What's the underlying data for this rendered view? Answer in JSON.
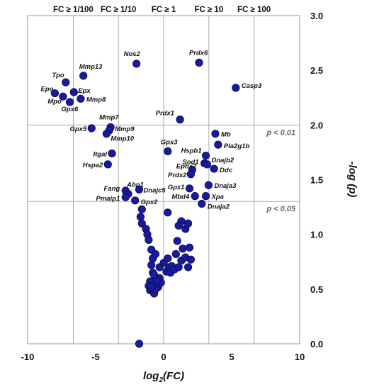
{
  "chart_data": {
    "type": "scatter",
    "xlabel_main": "log",
    "xlabel_sub": "2",
    "xlabel_tail": "(FC)",
    "ylabel": "-log (p)",
    "xlim": [
      -10,
      10
    ],
    "ylim": [
      0,
      3
    ],
    "x_ticks": [
      "-10",
      "-5",
      "0",
      "5",
      "10"
    ],
    "y_ticks": [
      "0.0",
      "0.5",
      "1.0",
      "1.5",
      "2.0",
      "2.5",
      "3.0"
    ],
    "fc_lines": [
      {
        "x": -6.644,
        "label": "FC ≥ 1/100"
      },
      {
        "x": -3.322,
        "label": "FC ≥ 1/10"
      },
      {
        "x": 0,
        "label": "FC ≥ 1"
      },
      {
        "x": 3.322,
        "label": "FC ≥ 10"
      },
      {
        "x": 6.644,
        "label": "FC ≥ 100"
      }
    ],
    "thresholds": [
      {
        "y": 2.0,
        "label": "p < 0.01"
      },
      {
        "y": 1.301,
        "label": "p < 0.05"
      }
    ],
    "points": [
      {
        "x": -8.0,
        "y": 2.29,
        "label": "Epo"
      },
      {
        "x": -7.2,
        "y": 2.39,
        "label": "Tpo"
      },
      {
        "x": -7.4,
        "y": 2.26,
        "label": "Mpo"
      },
      {
        "x": -6.6,
        "y": 2.3,
        "label": "Epx"
      },
      {
        "x": -6.9,
        "y": 2.21,
        "label": "Gpx6"
      },
      {
        "x": -5.9,
        "y": 2.45,
        "label": "Mmp13"
      },
      {
        "x": -6.1,
        "y": 2.24,
        "label": "Mmp8"
      },
      {
        "x": -5.3,
        "y": 1.97,
        "label": "Gpx5"
      },
      {
        "x": -3.9,
        "y": 1.98,
        "label": "Mmp7"
      },
      {
        "x": -4.0,
        "y": 1.95,
        "label": "Mmp9"
      },
      {
        "x": -4.2,
        "y": 1.92,
        "label": "Mmp10"
      },
      {
        "x": -3.8,
        "y": 1.74,
        "label": "Itgal"
      },
      {
        "x": -4.1,
        "y": 1.64,
        "label": "Hspa2"
      },
      {
        "x": -2.0,
        "y": 2.56,
        "label": "Nos2"
      },
      {
        "x": 2.6,
        "y": 2.57,
        "label": "Prdx6"
      },
      {
        "x": 5.3,
        "y": 2.34,
        "label": "Casp3"
      },
      {
        "x": 1.2,
        "y": 2.05,
        "label": "Prdx1"
      },
      {
        "x": 0.3,
        "y": 1.76,
        "label": "Gpx3"
      },
      {
        "x": 3.8,
        "y": 1.92,
        "label": "Mb"
      },
      {
        "x": 4.0,
        "y": 1.82,
        "label": "Pla2g1b"
      },
      {
        "x": 3.1,
        "y": 1.72,
        "label": "Hspb1"
      },
      {
        "x": 3.0,
        "y": 1.65,
        "label": "Sod1"
      },
      {
        "x": 3.2,
        "y": 1.64,
        "label": "Dnajb2"
      },
      {
        "x": 2.1,
        "y": 1.59,
        "label": "Ephx2"
      },
      {
        "x": 3.7,
        "y": 1.6,
        "label": "Ddc"
      },
      {
        "x": 2.0,
        "y": 1.55,
        "label": "Prdx2"
      },
      {
        "x": 3.3,
        "y": 1.45,
        "label": "Dnaja3"
      },
      {
        "x": 1.9,
        "y": 1.42,
        "label": "Gpx1"
      },
      {
        "x": 2.3,
        "y": 1.35,
        "label": "Mbd4"
      },
      {
        "x": 3.1,
        "y": 1.35,
        "label": "Xpa"
      },
      {
        "x": 2.8,
        "y": 1.28,
        "label": "Dnaja2"
      },
      {
        "x": -2.8,
        "y": 1.4,
        "label": "Fang"
      },
      {
        "x": -1.8,
        "y": 1.41,
        "label": "Dnajc5"
      },
      {
        "x": -2.6,
        "y": 1.37,
        "label": "Abp1"
      },
      {
        "x": -2.8,
        "y": 1.34,
        "label": "Pmaip1"
      },
      {
        "x": -2.1,
        "y": 1.31,
        "label": "Gpx2"
      },
      {
        "x": -1.6,
        "y": 1.23
      },
      {
        "x": -1.7,
        "y": 1.16
      },
      {
        "x": -1.6,
        "y": 1.1
      },
      {
        "x": -1.3,
        "y": 1.05
      },
      {
        "x": -1.2,
        "y": 1.0
      },
      {
        "x": -1.1,
        "y": 0.95
      },
      {
        "x": -0.9,
        "y": 0.86
      },
      {
        "x": -0.8,
        "y": 0.78
      },
      {
        "x": -0.9,
        "y": 0.72
      },
      {
        "x": -0.8,
        "y": 0.65
      },
      {
        "x": -0.6,
        "y": 0.82
      },
      {
        "x": -0.6,
        "y": 0.6
      },
      {
        "x": -1.0,
        "y": 0.57
      },
      {
        "x": -0.5,
        "y": 0.55
      },
      {
        "x": -0.3,
        "y": 0.6
      },
      {
        "x": -1.1,
        "y": 0.53
      },
      {
        "x": -1.0,
        "y": 0.49
      },
      {
        "x": -0.7,
        "y": 0.46
      },
      {
        "x": -0.4,
        "y": 0.52
      },
      {
        "x": -0.2,
        "y": 0.56
      },
      {
        "x": -0.6,
        "y": 0.5
      },
      {
        "x": -0.5,
        "y": 0.58
      },
      {
        "x": -0.9,
        "y": 0.52
      },
      {
        "x": -0.7,
        "y": 0.63
      },
      {
        "x": -0.3,
        "y": 0.7
      },
      {
        "x": 0.0,
        "y": 0.74
      },
      {
        "x": 0.2,
        "y": 0.66
      },
      {
        "x": 0.3,
        "y": 0.78
      },
      {
        "x": 0.4,
        "y": 0.7
      },
      {
        "x": 0.5,
        "y": 0.65
      },
      {
        "x": 0.6,
        "y": 0.71
      },
      {
        "x": 0.8,
        "y": 0.68
      },
      {
        "x": 0.9,
        "y": 0.82
      },
      {
        "x": 1.0,
        "y": 0.94
      },
      {
        "x": 1.1,
        "y": 0.7
      },
      {
        "x": 1.3,
        "y": 0.76
      },
      {
        "x": 1.4,
        "y": 0.87
      },
      {
        "x": 1.6,
        "y": 0.79
      },
      {
        "x": 1.8,
        "y": 0.7
      },
      {
        "x": 2.0,
        "y": 0.77
      },
      {
        "x": 1.9,
        "y": 0.88
      },
      {
        "x": 1.6,
        "y": 1.05
      },
      {
        "x": 1.3,
        "y": 1.12
      },
      {
        "x": 1.1,
        "y": 1.08
      },
      {
        "x": 1.8,
        "y": 1.1
      },
      {
        "x": 0.3,
        "y": 1.2
      },
      {
        "x": -1.8,
        "y": 0.0
      }
    ]
  }
}
